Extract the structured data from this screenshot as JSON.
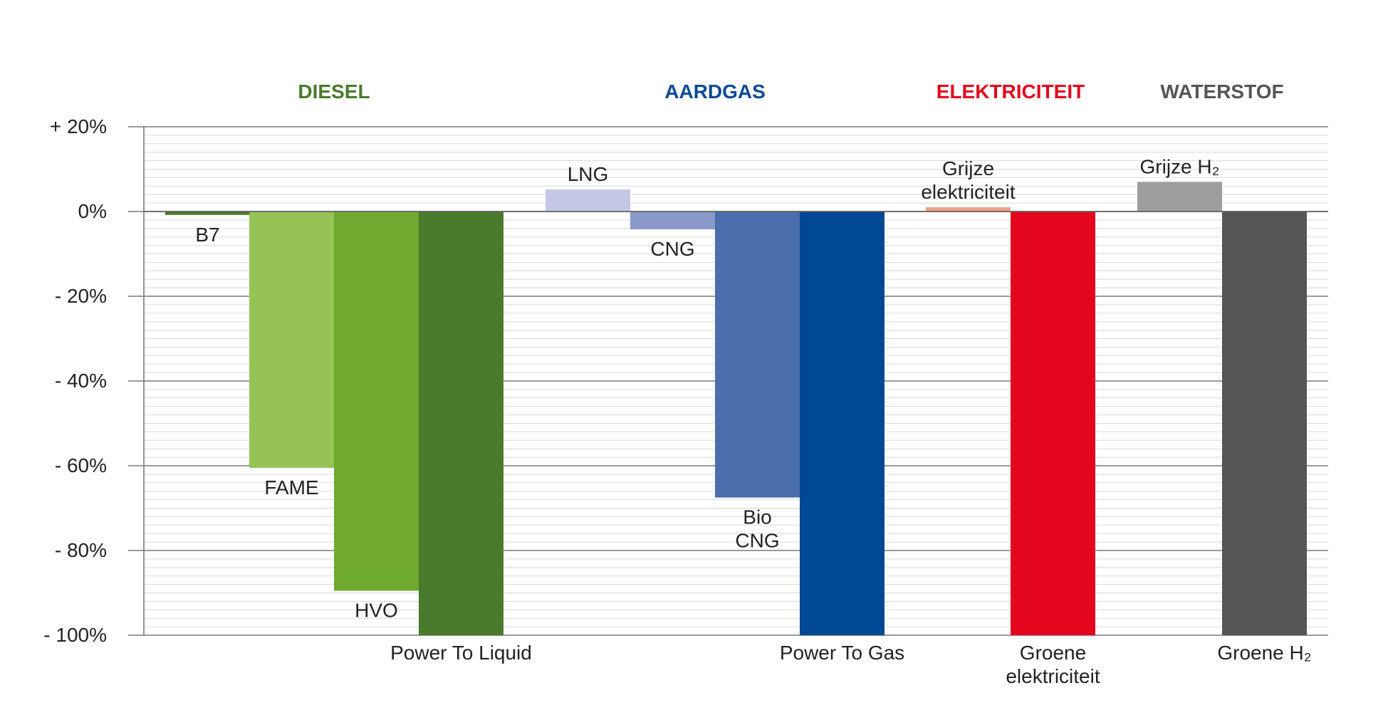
{
  "chart_data": {
    "type": "bar",
    "ylim": [
      -100,
      20
    ],
    "yticks": [
      {
        "value": 20,
        "label": "+ 20%"
      },
      {
        "value": 0,
        "label": "0%"
      },
      {
        "value": -20,
        "label": "- 20%"
      },
      {
        "value": -40,
        "label": "- 40%"
      },
      {
        "value": -60,
        "label": "- 60%"
      },
      {
        "value": -80,
        "label": "- 80%"
      },
      {
        "value": -100,
        "label": "- 100%"
      }
    ],
    "grid": true,
    "groups": [
      {
        "name": "DIESEL",
        "color": "#4a7a2c"
      },
      {
        "name": "AARDGAS",
        "color": "#0a4a96"
      },
      {
        "name": "ELEKTRICITEIT",
        "color": "#e3061e"
      },
      {
        "name": "WATERSTOF",
        "color": "#555555"
      }
    ],
    "bars": [
      {
        "group": "DIESEL",
        "lines": [
          "B7"
        ],
        "value": -0.8,
        "color": "#4a7a2c",
        "label_pos": "below"
      },
      {
        "group": "DIESEL",
        "lines": [
          "FAME"
        ],
        "value": -60.5,
        "color": "#95c356",
        "label_pos": "below"
      },
      {
        "group": "DIESEL",
        "lines": [
          "HVO"
        ],
        "value": -89.5,
        "color": "#6fa92f",
        "label_pos": "below"
      },
      {
        "group": "DIESEL",
        "lines": [
          "Power To Liquid"
        ],
        "value": -100,
        "color": "#4a7a2c",
        "label_pos": "axis"
      },
      {
        "group": "AARDGAS",
        "lines": [
          "LNG"
        ],
        "value": 5.2,
        "color": "#c3c8e4",
        "label_pos": "above"
      },
      {
        "group": "AARDGAS",
        "lines": [
          "CNG"
        ],
        "value": -4.2,
        "color": "#8999c9",
        "label_pos": "below"
      },
      {
        "group": "AARDGAS",
        "lines": [
          "Bio",
          "CNG"
        ],
        "value": -67.5,
        "color": "#4a6dab",
        "label_pos": "below"
      },
      {
        "group": "AARDGAS",
        "lines": [
          "Power To Gas"
        ],
        "value": -100,
        "color": "#004893",
        "label_pos": "axis"
      },
      {
        "group": "ELEKTRICITEIT",
        "lines": [
          "Grijze",
          "elektriciteit"
        ],
        "value": 1.0,
        "color": "#f0a089",
        "label_pos": "above"
      },
      {
        "group": "ELEKTRICITEIT",
        "lines": [
          "Groene",
          "elektriciteit"
        ],
        "value": -100,
        "color": "#e3061e",
        "label_pos": "axis"
      },
      {
        "group": "WATERSTOF",
        "lines": [
          "Grijze H₂"
        ],
        "value": 7.0,
        "color": "#9e9e9e",
        "label_pos": "above"
      },
      {
        "group": "WATERSTOF",
        "lines": [
          "Groene H₂"
        ],
        "value": -100,
        "color": "#555555",
        "label_pos": "axis"
      }
    ]
  }
}
